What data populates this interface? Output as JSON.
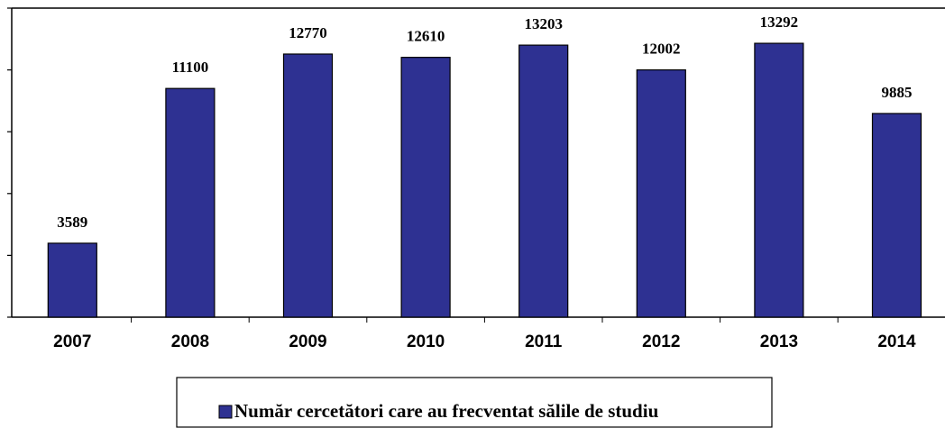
{
  "chart_data": {
    "type": "bar",
    "categories": [
      "2007",
      "2008",
      "2009",
      "2010",
      "2011",
      "2012",
      "2013",
      "2014"
    ],
    "series": [
      {
        "name": "Număr cercetători care au frecventat sălile de studiu",
        "color": "#2e3192",
        "values": [
          3589,
          11100,
          12770,
          12610,
          13203,
          12002,
          13292,
          9885
        ]
      }
    ],
    "ylim": [
      0,
      15000
    ],
    "yticks": [
      0,
      3000,
      6000,
      9000,
      12000,
      15000
    ],
    "legend": "bottom"
  }
}
